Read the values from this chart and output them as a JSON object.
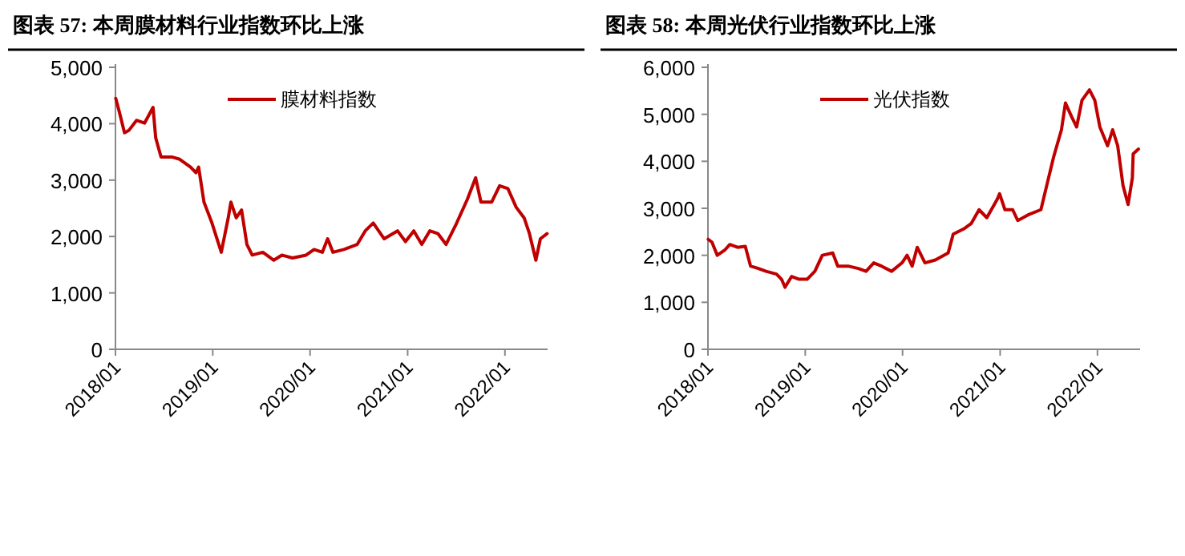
{
  "chart_data": [
    {
      "type": "line",
      "title": "图表 57:  本周膜材料行业指数环比上涨",
      "legend": "top",
      "xlim": [
        "2018-01-01",
        "2022-06-10"
      ],
      "xticks": [
        {
          "value": "2018-01-01",
          "label": "2018/01"
        },
        {
          "value": "2019-01-01",
          "label": "2019/01"
        },
        {
          "value": "2020-01-01",
          "label": "2020/01"
        },
        {
          "value": "2021-01-01",
          "label": "2021/01"
        },
        {
          "value": "2022-01-01",
          "label": "2022/01"
        }
      ],
      "ylim": [
        0,
        5000
      ],
      "yticks": [
        0,
        {
          "value": 1000,
          "label": "1,000"
        },
        {
          "value": 2000,
          "label": "2,000"
        },
        {
          "value": 3000,
          "label": "3,000"
        },
        {
          "value": 4000,
          "label": "4,000"
        },
        {
          "value": 5000,
          "label": "5,000"
        }
      ],
      "series": [
        {
          "name": "膜材料指数",
          "color": "#c00000",
          "x": [
            "2018-01-02",
            "2018-01-15",
            "2018-02-04",
            "2018-02-20",
            "2018-03-21",
            "2018-04-20",
            "2018-05-22",
            "2018-06-01",
            "2018-06-21",
            "2018-07-31",
            "2018-08-30",
            "2018-10-10",
            "2018-10-30",
            "2018-11-09",
            "2018-11-29",
            "2018-12-29",
            "2019-02-02",
            "2019-02-28",
            "2019-03-10",
            "2019-03-30",
            "2019-04-19",
            "2019-05-09",
            "2019-05-29",
            "2019-07-08",
            "2019-08-18",
            "2019-09-17",
            "2019-10-27",
            "2019-12-17",
            "2020-01-16",
            "2020-02-16",
            "2020-03-07",
            "2020-03-27",
            "2020-05-07",
            "2020-06-26",
            "2020-07-26",
            "2020-08-25",
            "2020-10-05",
            "2020-11-24",
            "2020-12-24",
            "2021-01-24",
            "2021-02-23",
            "2021-03-25",
            "2021-04-25",
            "2021-05-25",
            "2021-07-04",
            "2021-08-13",
            "2021-09-13",
            "2021-10-03",
            "2021-11-12",
            "2021-12-12",
            "2022-01-12",
            "2022-02-12",
            "2022-03-14",
            "2022-04-03",
            "2022-04-27",
            "2022-05-14",
            "2022-06-08"
          ],
          "values": [
            4450,
            4220,
            3840,
            3880,
            4060,
            4010,
            4290,
            3750,
            3410,
            3410,
            3370,
            3230,
            3130,
            3230,
            2610,
            2240,
            1720,
            2330,
            2610,
            2330,
            2470,
            1860,
            1670,
            1720,
            1580,
            1670,
            1620,
            1670,
            1770,
            1720,
            1960,
            1720,
            1770,
            1860,
            2100,
            2240,
            1960,
            2100,
            1910,
            2100,
            1860,
            2100,
            2050,
            1860,
            2240,
            2660,
            3040,
            2610,
            2610,
            2900,
            2850,
            2520,
            2330,
            2050,
            1580,
            1960,
            2050
          ]
        }
      ]
    },
    {
      "type": "line",
      "title": "图表 58:  本周光伏行业指数环比上涨",
      "legend": "top",
      "xlim": [
        "2018-01-01",
        "2022-06-10"
      ],
      "xticks": [
        {
          "value": "2018-01-01",
          "label": "2018/01"
        },
        {
          "value": "2019-01-01",
          "label": "2019/01"
        },
        {
          "value": "2020-01-01",
          "label": "2020/01"
        },
        {
          "value": "2021-01-01",
          "label": "2021/01"
        },
        {
          "value": "2022-01-01",
          "label": "2022/01"
        }
      ],
      "ylim": [
        0,
        6000
      ],
      "yticks": [
        0,
        {
          "value": 1000,
          "label": "1,000"
        },
        {
          "value": 2000,
          "label": "2,000"
        },
        {
          "value": 3000,
          "label": "3,000"
        },
        {
          "value": 4000,
          "label": "4,000"
        },
        {
          "value": 5000,
          "label": "5,000"
        },
        {
          "value": 6000,
          "label": "6,000"
        }
      ],
      "series": [
        {
          "name": "光伏指数",
          "color": "#c00000",
          "x": [
            "2018-01-02",
            "2018-01-16",
            "2018-02-05",
            "2018-03-05",
            "2018-03-24",
            "2018-04-22",
            "2018-05-21",
            "2018-06-10",
            "2018-07-09",
            "2018-08-07",
            "2018-09-15",
            "2018-10-04",
            "2018-10-17",
            "2018-11-11",
            "2018-12-09",
            "2019-01-08",
            "2019-02-06",
            "2019-03-06",
            "2019-04-14",
            "2019-05-03",
            "2019-06-11",
            "2019-07-19",
            "2019-08-17",
            "2019-09-15",
            "2019-10-14",
            "2019-11-21",
            "2019-12-30",
            "2020-01-18",
            "2020-02-06",
            "2020-02-25",
            "2020-03-25",
            "2020-05-03",
            "2020-06-20",
            "2020-07-09",
            "2020-08-17",
            "2020-09-15",
            "2020-10-14",
            "2020-11-12",
            "2020-12-21",
            "2020-12-30",
            "2021-01-19",
            "2021-02-17",
            "2021-03-08",
            "2021-04-16",
            "2021-06-03",
            "2021-06-22",
            "2021-07-21",
            "2021-08-19",
            "2021-09-03",
            "2021-09-26",
            "2021-10-15",
            "2021-11-04",
            "2021-12-02",
            "2021-12-22",
            "2022-01-10",
            "2022-02-08",
            "2022-02-27",
            "2022-03-18",
            "2022-04-07",
            "2022-04-26",
            "2022-05-12",
            "2022-05-15",
            "2022-06-04"
          ],
          "values": [
            2340,
            2280,
            2000,
            2110,
            2230,
            2170,
            2190,
            1770,
            1720,
            1660,
            1600,
            1490,
            1320,
            1550,
            1490,
            1490,
            1660,
            2000,
            2050,
            1770,
            1770,
            1720,
            1660,
            1840,
            1770,
            1660,
            1840,
            2000,
            1770,
            2170,
            1840,
            1900,
            2050,
            2450,
            2560,
            2680,
            2970,
            2800,
            3190,
            3310,
            2970,
            2970,
            2740,
            2860,
            2970,
            3420,
            4100,
            4670,
            5240,
            4950,
            4730,
            5300,
            5520,
            5300,
            4730,
            4330,
            4670,
            4330,
            3480,
            3080,
            3650,
            4160,
            4260
          ]
        }
      ]
    }
  ]
}
